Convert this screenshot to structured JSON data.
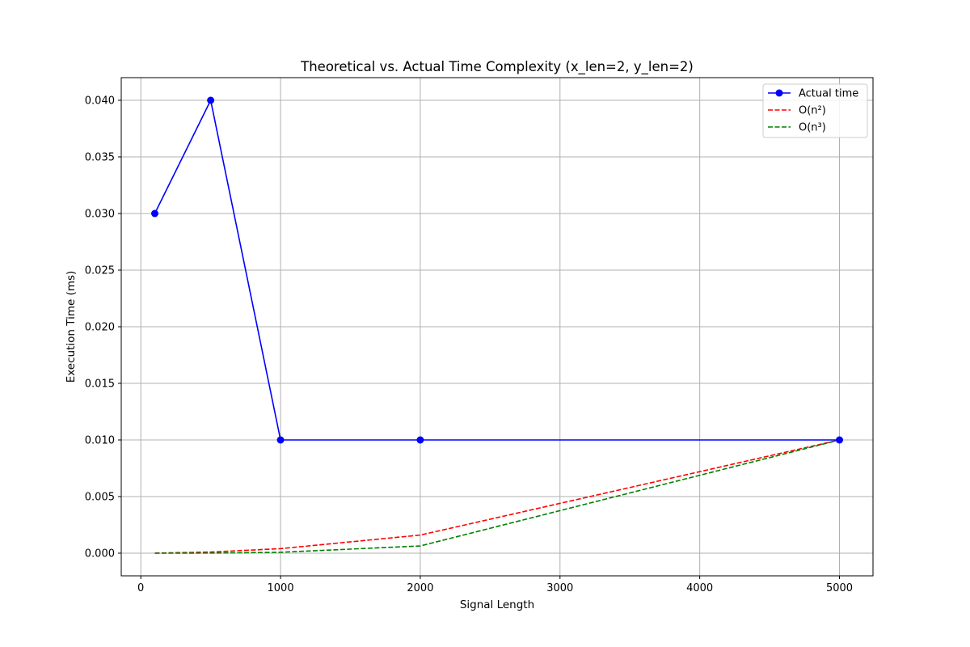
{
  "chart_data": {
    "type": "line",
    "title": "Theoretical vs. Actual Time Complexity (x_len=2, y_len=2)",
    "xlabel": "Signal Length",
    "ylabel": "Execution Time (ms)",
    "xlim": [
      -140,
      5240
    ],
    "ylim": [
      -0.002,
      0.042
    ],
    "xticks": [
      0,
      1000,
      2000,
      3000,
      4000,
      5000
    ],
    "xtick_labels": [
      "0",
      "1000",
      "2000",
      "3000",
      "4000",
      "5000"
    ],
    "yticks": [
      0.0,
      0.005,
      0.01,
      0.015,
      0.02,
      0.025,
      0.03,
      0.035,
      0.04
    ],
    "ytick_labels": [
      "0.000",
      "0.005",
      "0.010",
      "0.015",
      "0.020",
      "0.025",
      "0.030",
      "0.035",
      "0.040"
    ],
    "grid": true,
    "legend_position": "top-right",
    "x": [
      100,
      500,
      1000,
      2000,
      5000
    ],
    "series": [
      {
        "name": "Actual time",
        "values": [
          0.03,
          0.04,
          0.01,
          0.01,
          0.01
        ],
        "color": "#0000ff",
        "style": "solid",
        "marker": "circle"
      },
      {
        "name": "O(n²)",
        "values": [
          4e-06,
          0.0001,
          0.0004,
          0.0016,
          0.01
        ],
        "color": "#ff0000",
        "style": "dashed",
        "marker": "none"
      },
      {
        "name": "O(n³)",
        "values": [
          8e-08,
          1e-05,
          8e-05,
          0.00064,
          0.01
        ],
        "color": "#008000",
        "style": "dashed",
        "marker": "none"
      }
    ]
  }
}
